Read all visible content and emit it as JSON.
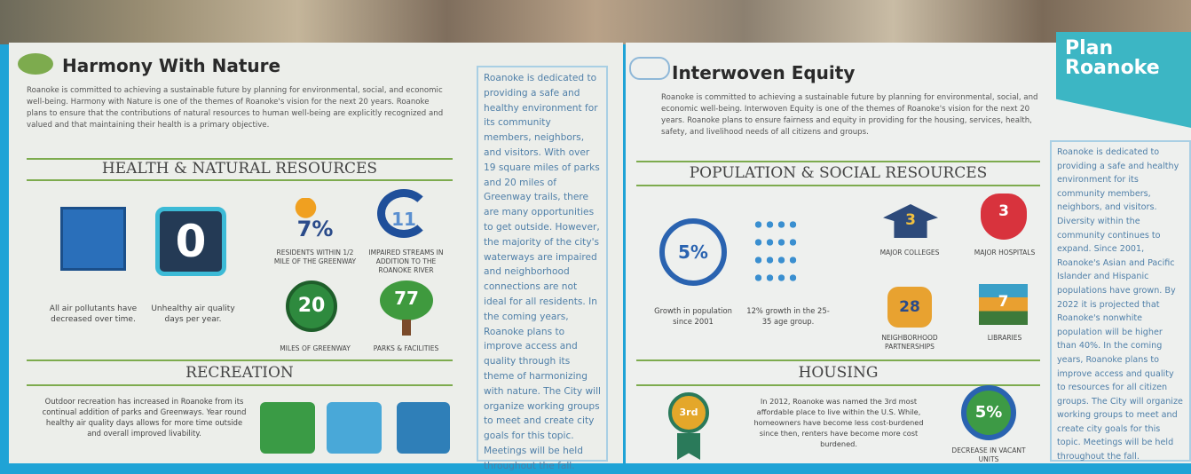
{
  "left": {
    "title": "Harmony With Nature",
    "intro": "Roanoke is committed to achieving a sustainable future by planning for environmental, social, and economic well-being. Harmony with Nature is one of the themes of Roanoke's vision for the next 20 years. Roanoke plans to ensure that the contributions of natural resources to human well-being are explicitly recognized and valued and that maintaining their health is a primary objective.",
    "section1": "HEALTH & NATURAL RESOURCES",
    "stats": [
      {
        "caption": "All air pollutants have decreased over time."
      },
      {
        "value": "0",
        "caption": "Unhealthy air quality days per year."
      },
      {
        "value": "7%",
        "caption": "RESIDENTS WITHIN 1/2 MILE OF THE GREENWAY"
      },
      {
        "value": "11",
        "caption": "IMPAIRED STREAMS IN ADDITION TO THE ROANOKE RIVER"
      },
      {
        "value": "20",
        "caption": "MILES OF GREENWAY"
      },
      {
        "value": "77",
        "caption": "PARKS & FACILITIES"
      }
    ],
    "section2": "RECREATION",
    "recreation": "Outdoor recreation has increased in Roanoke from its continual addition of parks and Greenways. Year round healthy air quality days allows for more time outside and overall improved livability.",
    "sidebar": "Roanoke is dedicated to providing a safe and healthy environment for its community members, neighbors, and visitors. With over 19 square miles of parks and 20 miles of Greenway trails, there are many opportunities to get outside. However, the majority of the city's waterways are impaired and neighborhood connections are not ideal for all residents. In the coming years, Roanoke plans to improve access and quality through its theme of harmonizing with nature. The City will organize working groups to meet and create city goals for this topic. Meetings will be held throughout the fall."
  },
  "right": {
    "title": "Interwoven Equity",
    "intro": "Roanoke is committed to achieving a sustainable future by planning for environmental, social, and economic well-being. Interwoven Equity is one of the themes of Roanoke's vision for the next 20 years. Roanoke plans to ensure fairness and equity in providing for the housing, services, health, safety, and livelihood needs of all citizens and groups.",
    "section1": "POPULATION & SOCIAL RESOURCES",
    "stats": [
      {
        "value": "5%",
        "caption": "Growth in population since 2001"
      },
      {
        "caption": "12% growth in the 25-35 age group."
      },
      {
        "value": "3",
        "caption": "MAJOR COLLEGES"
      },
      {
        "value": "3",
        "caption": "MAJOR HOSPITALS"
      },
      {
        "value": "28",
        "caption": "NEIGHBORHOOD PARTNERSHIPS"
      },
      {
        "value": "7",
        "caption": "LIBRARIES"
      }
    ],
    "section2": "HOUSING",
    "badge": "3rd",
    "housing": "In 2012, Roanoke was named the 3rd most affordable place to live within the U.S. While, homeowners have become less cost-burdened since then, renters have become more cost burdened.",
    "vacant": {
      "value": "5%",
      "caption": "DECREASE IN VACANT UNITS"
    },
    "sidebar": "Roanoke is dedicated to providing a safe and healthy environment for its community members, neighbors, and visitors. Diversity within the community continues to expand. Since 2001, Roanoke's Asian and Pacific Islander and Hispanic populations have grown. By 2022 it is projected that Roanoke's nonwhite population will be higher than 40%. In the coming years, Roanoke plans to improve access and quality to resources for all citizen groups. The City will organize working groups to meet and create city goals for this topic. Meetings will be held throughout the fall.",
    "logo": [
      "Plan",
      "Roanoke"
    ]
  }
}
